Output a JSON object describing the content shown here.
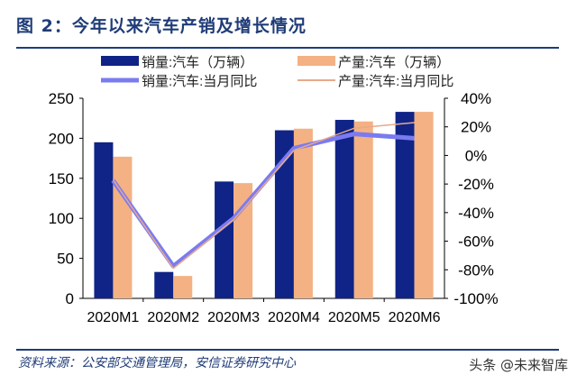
{
  "header": {
    "title": "图 2：今年以来汽车产销及增长情况"
  },
  "footer": {
    "source": "资料来源：公安部交通管理局，安信证券研究中心",
    "watermark": "头条 @未来智库"
  },
  "chart_data": {
    "type": "bar",
    "title": "",
    "categories": [
      "2020M1",
      "2020M2",
      "2020M3",
      "2020M4",
      "2020M5",
      "2020M6"
    ],
    "ylim": [
      0,
      250
    ],
    "yticks": [
      "0",
      "50",
      "100",
      "150",
      "200",
      "250"
    ],
    "y2lim": [
      -100,
      40
    ],
    "y2ticks": [
      "-100%",
      "-80%",
      "-60%",
      "-40%",
      "-20%",
      "0%",
      "20%",
      "40%"
    ],
    "grid": false,
    "legend_position": "top",
    "series": [
      {
        "name": "销量:汽车（万辆）",
        "type": "bar",
        "axis": "left",
        "color": "#0f2486",
        "values": [
          195,
          33,
          146,
          210,
          223,
          233
        ]
      },
      {
        "name": "产量:汽车（万辆）",
        "type": "bar",
        "axis": "left",
        "color": "#f4b183",
        "values": [
          177,
          28,
          144,
          212,
          221,
          233
        ]
      },
      {
        "name": "销量:汽车:当月同比",
        "type": "line",
        "axis": "right",
        "color": "#7b7bf0",
        "values": [
          -17.5,
          -77.5,
          -44,
          5,
          15,
          12
        ]
      },
      {
        "name": "产量:汽车:当月同比",
        "type": "line",
        "axis": "right",
        "color": "#e8a98a",
        "values": [
          -17,
          -79,
          -45,
          3.5,
          19,
          23
        ]
      }
    ]
  }
}
